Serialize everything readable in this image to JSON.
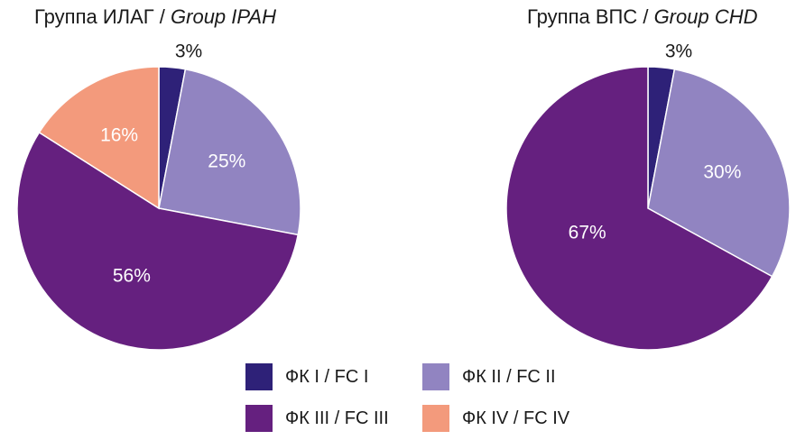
{
  "chart_data": [
    {
      "type": "pie",
      "title": "Группа ИЛАГ / ",
      "title_italic": "Group IPAH",
      "categories": [
        "ФК I / FC I",
        "ФК II / FC II",
        "ФК III / FC III",
        "ФК IV / FC IV"
      ],
      "values": [
        3,
        25,
        56,
        16
      ],
      "labels": [
        "3%",
        "25%",
        "56%",
        "16%"
      ]
    },
    {
      "type": "pie",
      "title": "Группа ВПС / ",
      "title_italic": "Group CHD",
      "categories": [
        "ФК I / FC I",
        "ФК II / FC II",
        "ФК III / FC III",
        "ФК IV / FC IV"
      ],
      "values": [
        3,
        30,
        67,
        0
      ],
      "labels": [
        "3%",
        "30%",
        "67%",
        ""
      ]
    }
  ],
  "legend": [
    {
      "label": "ФК I / FC I",
      "color": "#2e2178"
    },
    {
      "label": "ФК II / FC II",
      "color": "#9184c1"
    },
    {
      "label": "ФК III / FC III",
      "color": "#65207f"
    },
    {
      "label": "ФК IV / FC IV",
      "color": "#f39a7c"
    }
  ],
  "colors": {
    "fc1": "#2e2178",
    "fc2": "#9184c1",
    "fc3": "#65207f",
    "fc4": "#f39a7c",
    "label_light": "#ffffff",
    "label_dark": "#1a1a1a"
  }
}
